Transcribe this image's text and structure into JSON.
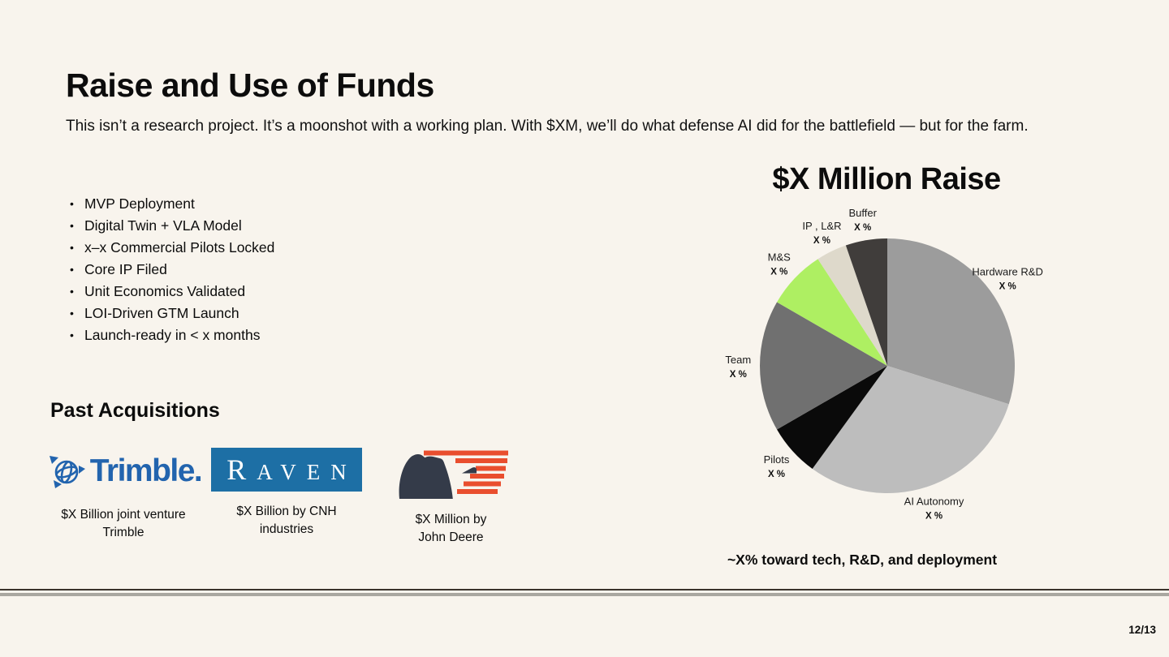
{
  "slide": {
    "title": "Raise and Use of Funds",
    "subtitle": "This isn’t a research project. It’s a moonshot with a working plan. With $XM, we’ll do what defense AI did for the battlefield — but for the farm.",
    "page_number": "12/13",
    "background_color": "#f8f4ed"
  },
  "milestones": {
    "items": [
      "MVP Deployment",
      "Digital Twin + VLA Model",
      "x–x Commercial Pilots Locked",
      "Core IP Filed",
      "Unit Economics Validated",
      "LOI-Driven GTM Launch",
      "Launch-ready in < x months"
    ]
  },
  "acquisitions": {
    "heading": "Past Acquisitions",
    "items": [
      {
        "name": "Trimble",
        "logo_text": "Trimble.",
        "brand_color": "#2264ae",
        "caption_line1": "$X Billion  joint venture",
        "caption_line2": "Trimble"
      },
      {
        "name": "Raven",
        "logo_text": "RAVEN",
        "brand_color": "#1d6fa5",
        "caption_line1": "$X Billion by CNH",
        "caption_line2": "industries"
      },
      {
        "name": "Bear Flag Robotics",
        "body_color": "#343b49",
        "stripe_color": "#e94e2e",
        "caption_line1": "$X Million by",
        "caption_line2": "John Deere"
      }
    ]
  },
  "chart_data": {
    "type": "pie",
    "title": "$X Million Raise",
    "caption": "~X% toward tech, R&D, and deployment",
    "legend": "none",
    "labels_position": "outside",
    "angle_convention": "degrees clockwise from 12 o'clock",
    "slices": [
      {
        "label": "Hardware R&D",
        "value_label": "X %",
        "pct_est": 30,
        "start_deg": 0,
        "end_deg": 107.5,
        "color": "#9c9c9c"
      },
      {
        "label": "AI Autonomy",
        "value_label": "X %",
        "pct_est": 30,
        "start_deg": 107.5,
        "end_deg": 216,
        "color": "#bdbdbd"
      },
      {
        "label": "Pilots",
        "value_label": "X %",
        "pct_est": 7,
        "start_deg": 216,
        "end_deg": 240,
        "color": "#0a0a0a"
      },
      {
        "label": "Team",
        "value_label": "X %",
        "pct_est": 17,
        "start_deg": 240,
        "end_deg": 300,
        "color": "#707070"
      },
      {
        "label": "M&S",
        "value_label": "X %",
        "pct_est": 7.5,
        "start_deg": 300,
        "end_deg": 327,
        "color": "#aeef62"
      },
      {
        "label": "IP , L&R",
        "value_label": "X %",
        "pct_est": 4,
        "start_deg": 327,
        "end_deg": 341,
        "color": "#ded9cb"
      },
      {
        "label": "Buffer",
        "value_label": "X %",
        "pct_est": 5.5,
        "start_deg": 341,
        "end_deg": 360,
        "color": "#403d3b"
      }
    ]
  }
}
